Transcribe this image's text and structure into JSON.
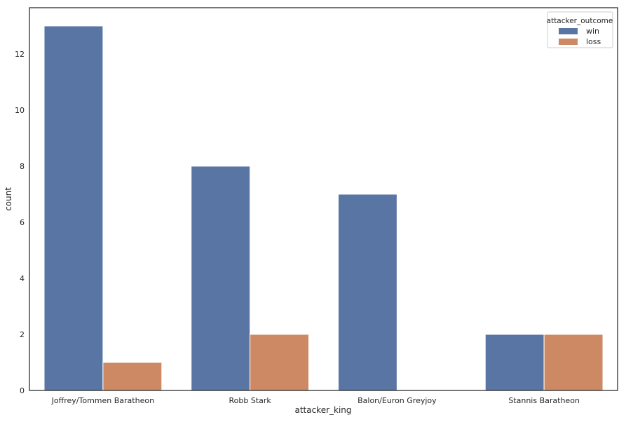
{
  "chart_data": {
    "type": "bar",
    "title": "",
    "xlabel": "attacker_king",
    "ylabel": "count",
    "categories": [
      "Joffrey/Tommen Baratheon",
      "Robb Stark",
      "Balon/Euron Greyjoy",
      "Stannis Baratheon"
    ],
    "series": [
      {
        "name": "win",
        "color": "#5975a4",
        "values": [
          13,
          8,
          7,
          2
        ]
      },
      {
        "name": "loss",
        "color": "#cc8963",
        "values": [
          1,
          2,
          0,
          2
        ]
      }
    ],
    "ylim": [
      0,
      13.65
    ],
    "yticks": [
      0,
      2,
      4,
      6,
      8,
      10,
      12
    ],
    "grid": false,
    "legend": {
      "title": "attacker_outcome",
      "placement": "top-right"
    }
  }
}
